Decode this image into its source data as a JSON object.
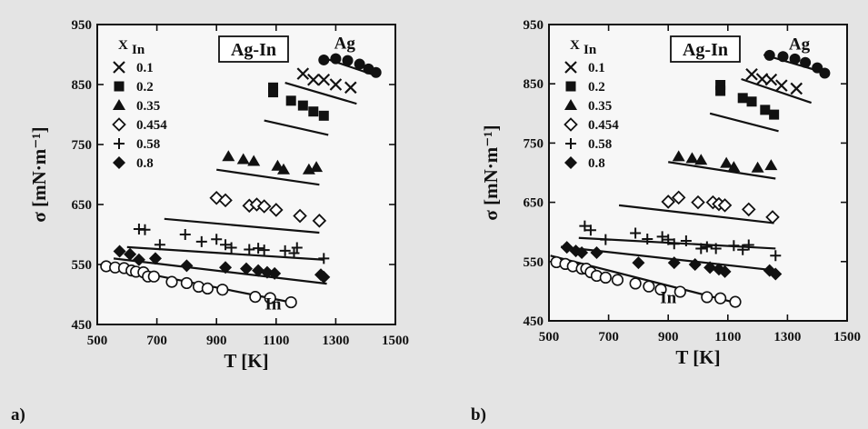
{
  "chart_data": [
    {
      "type": "scatter",
      "panel": "a)",
      "xlabel": "T [K]",
      "ylabel": "σ [mN·m⁻¹]",
      "xlim": [
        500,
        1500
      ],
      "ylim": [
        450,
        950
      ],
      "xticks": [
        500,
        700,
        900,
        1100,
        1300,
        1500
      ],
      "yticks": [
        450,
        550,
        650,
        750,
        850,
        950
      ],
      "box_label": "Ag-In",
      "legend_title": "X",
      "legend_title_sub": "In",
      "legend_placement": "top-left",
      "annotations": [
        {
          "text": "Ag",
          "x": 1330,
          "y": 910
        },
        {
          "text": "In",
          "x": 1090,
          "y": 475
        }
      ],
      "series": [
        {
          "name": "0.1",
          "marker": "x",
          "points": [
            [
              1190,
              868
            ],
            [
              1225,
              858
            ],
            [
              1260,
              858
            ],
            [
              1300,
              850
            ],
            [
              1350,
              845
            ]
          ],
          "line": [
            [
              1130,
              853
            ],
            [
              1370,
              818
            ]
          ]
        },
        {
          "name": "0.2",
          "marker": "square",
          "points": [
            [
              1090,
              845
            ],
            [
              1090,
              837
            ],
            [
              1150,
              823
            ],
            [
              1190,
              815
            ],
            [
              1225,
              805
            ],
            [
              1260,
              798
            ]
          ],
          "line": [
            [
              1060,
              790
            ],
            [
              1275,
              766
            ]
          ]
        },
        {
          "name": "0.35",
          "marker": "triangle",
          "points": [
            [
              940,
              730
            ],
            [
              990,
              725
            ],
            [
              1025,
              722
            ],
            [
              1105,
              714
            ],
            [
              1125,
              708
            ],
            [
              1210,
              708
            ],
            [
              1235,
              712
            ]
          ],
          "line": [
            [
              900,
              708
            ],
            [
              1245,
              683
            ]
          ]
        },
        {
          "name": "0.454",
          "marker": "diamond-open",
          "points": [
            [
              900,
              661
            ],
            [
              930,
              657
            ],
            [
              1010,
              648
            ],
            [
              1035,
              650
            ],
            [
              1060,
              647
            ],
            [
              1100,
              641
            ],
            [
              1180,
              631
            ],
            [
              1245,
              623
            ]
          ],
          "line": [
            [
              725,
              626
            ],
            [
              1245,
              603
            ]
          ]
        },
        {
          "name": "0.58",
          "marker": "plus",
          "points": [
            [
              640,
              609
            ],
            [
              660,
              608
            ],
            [
              710,
              583
            ],
            [
              795,
              600
            ],
            [
              850,
              588
            ],
            [
              900,
              592
            ],
            [
              930,
              583
            ],
            [
              950,
              578
            ],
            [
              1010,
              575
            ],
            [
              1040,
              577
            ],
            [
              1060,
              574
            ],
            [
              1130,
              573
            ],
            [
              1160,
              569
            ],
            [
              1170,
              578
            ],
            [
              1260,
              560
            ]
          ],
          "line": [
            [
              600,
              579
            ],
            [
              1260,
              558
            ]
          ]
        },
        {
          "name": "0.8",
          "marker": "diamond",
          "points": [
            [
              575,
              572
            ],
            [
              610,
              567
            ],
            [
              640,
              558
            ],
            [
              695,
              560
            ],
            [
              800,
              548
            ],
            [
              930,
              545
            ],
            [
              1000,
              543
            ],
            [
              1040,
              540
            ],
            [
              1070,
              537
            ],
            [
              1095,
              535
            ],
            [
              1250,
              533
            ],
            [
              1260,
              529
            ]
          ],
          "line": [
            [
              555,
              560
            ],
            [
              1270,
              518
            ]
          ]
        },
        {
          "name": "",
          "marker": "circle-open",
          "points": [
            [
              530,
              547
            ],
            [
              560,
              545
            ],
            [
              590,
              544
            ],
            [
              615,
              540
            ],
            [
              630,
              538
            ],
            [
              655,
              537
            ],
            [
              670,
              530
            ],
            [
              690,
              530
            ],
            [
              750,
              521
            ],
            [
              800,
              519
            ],
            [
              840,
              513
            ],
            [
              870,
              510
            ],
            [
              920,
              508
            ],
            [
              1030,
              496
            ],
            [
              1080,
              494
            ],
            [
              1150,
              487
            ]
          ],
          "line": [
            [
              510,
              550
            ],
            [
              1160,
              486
            ]
          ]
        },
        {
          "name": "",
          "marker": "circle",
          "points": [
            [
              1260,
              891
            ],
            [
              1300,
              893
            ],
            [
              1340,
              890
            ],
            [
              1380,
              884
            ],
            [
              1410,
              876
            ],
            [
              1435,
              870
            ]
          ],
          "line": [
            [
              1250,
              896
            ],
            [
              1440,
              864
            ]
          ]
        }
      ]
    },
    {
      "type": "scatter",
      "panel": "b)",
      "xlabel": "T [K]",
      "ylabel": "σ [mN·m⁻¹]",
      "xlim": [
        500,
        1500
      ],
      "ylim": [
        450,
        950
      ],
      "xticks": [
        500,
        700,
        900,
        1100,
        1300,
        1500
      ],
      "yticks": [
        450,
        550,
        650,
        750,
        850,
        950
      ],
      "box_label": "Ag-In",
      "legend_title": "X",
      "legend_title_sub": "In",
      "legend_placement": "top-left",
      "annotations": [
        {
          "text": "Ag",
          "x": 1340,
          "y": 908
        },
        {
          "text": "In",
          "x": 900,
          "y": 480
        }
      ],
      "series": [
        {
          "name": "0.1",
          "marker": "x",
          "points": [
            [
              1180,
              866
            ],
            [
              1215,
              858
            ],
            [
              1245,
              857
            ],
            [
              1280,
              847
            ],
            [
              1330,
              842
            ]
          ],
          "line": [
            [
              1145,
              858
            ],
            [
              1380,
              818
            ]
          ]
        },
        {
          "name": "0.2",
          "marker": "square",
          "points": [
            [
              1075,
              848
            ],
            [
              1075,
              838
            ],
            [
              1150,
              826
            ],
            [
              1180,
              820
            ],
            [
              1225,
              806
            ],
            [
              1255,
              798
            ]
          ],
          "line": [
            [
              1040,
              800
            ],
            [
              1270,
              770
            ]
          ]
        },
        {
          "name": "0.35",
          "marker": "triangle",
          "points": [
            [
              935,
              727
            ],
            [
              980,
              724
            ],
            [
              1010,
              721
            ],
            [
              1095,
              716
            ],
            [
              1120,
              709
            ],
            [
              1200,
              708
            ],
            [
              1245,
              712
            ]
          ],
          "line": [
            [
              900,
              718
            ],
            [
              1260,
              690
            ]
          ]
        },
        {
          "name": "0.454",
          "marker": "diamond-open",
          "points": [
            [
              900,
              651
            ],
            [
              935,
              658
            ],
            [
              1000,
              650
            ],
            [
              1050,
              650
            ],
            [
              1070,
              647
            ],
            [
              1090,
              645
            ],
            [
              1170,
              638
            ],
            [
              1250,
              625
            ]
          ],
          "line": [
            [
              735,
              645
            ],
            [
              1255,
              615
            ]
          ]
        },
        {
          "name": "0.58",
          "marker": "plus",
          "points": [
            [
              620,
              610
            ],
            [
              640,
              603
            ],
            [
              690,
              587
            ],
            [
              790,
              598
            ],
            [
              830,
              588
            ],
            [
              880,
              592
            ],
            [
              900,
              587
            ],
            [
              920,
              580
            ],
            [
              960,
              585
            ],
            [
              1010,
              572
            ],
            [
              1030,
              575
            ],
            [
              1060,
              572
            ],
            [
              1120,
              577
            ],
            [
              1150,
              570
            ],
            [
              1170,
              578
            ],
            [
              1260,
              560
            ]
          ],
          "line": [
            [
              600,
              590
            ],
            [
              1260,
              572
            ]
          ]
        },
        {
          "name": "0.8",
          "marker": "diamond",
          "points": [
            [
              560,
              574
            ],
            [
              590,
              568
            ],
            [
              610,
              565
            ],
            [
              660,
              565
            ],
            [
              800,
              548
            ],
            [
              920,
              548
            ],
            [
              990,
              545
            ],
            [
              1040,
              540
            ],
            [
              1070,
              537
            ],
            [
              1090,
              533
            ],
            [
              1240,
              535
            ],
            [
              1260,
              529
            ]
          ],
          "line": [
            [
              540,
              575
            ],
            [
              1260,
              535
            ]
          ]
        },
        {
          "name": "",
          "marker": "circle-open",
          "points": [
            [
              525,
              549
            ],
            [
              555,
              546
            ],
            [
              580,
              542
            ],
            [
              610,
              538
            ],
            [
              625,
              538
            ],
            [
              640,
              532
            ],
            [
              660,
              526
            ],
            [
              690,
              523
            ],
            [
              730,
              519
            ],
            [
              790,
              513
            ],
            [
              835,
              508
            ],
            [
              875,
              503
            ],
            [
              940,
              499
            ],
            [
              1030,
              490
            ],
            [
              1075,
              488
            ],
            [
              1125,
              482
            ]
          ],
          "line": [
            [
              505,
              560
            ],
            [
              1130,
              480
            ]
          ]
        },
        {
          "name": "",
          "marker": "circle",
          "points": [
            [
              1240,
              898
            ],
            [
              1285,
              896
            ],
            [
              1325,
              892
            ],
            [
              1360,
              886
            ],
            [
              1400,
              877
            ],
            [
              1425,
              868
            ]
          ],
          "line": [
            [
              1220,
              899
            ],
            [
              1430,
              868
            ]
          ]
        }
      ]
    }
  ],
  "panels_layout_note": ""
}
